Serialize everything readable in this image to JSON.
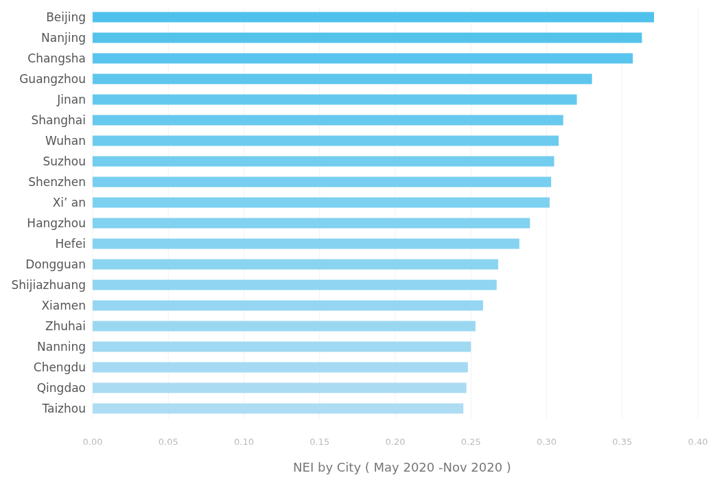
{
  "chart_data": {
    "type": "bar",
    "orientation": "horizontal",
    "xlabel": "NEI by City ( May 2020 -Nov 2020 )",
    "categories": [
      "Beijing",
      "Nanjing",
      "Changsha",
      "Guangzhou",
      "Jinan",
      "Shanghai",
      "Wuhan",
      "Suzhou",
      "Shenzhen",
      "Xi’ an",
      "Hangzhou",
      "Hefei",
      "Dongguan",
      "Shijiazhuang",
      "Xiamen",
      "Zhuhai",
      "Nanning",
      "Chengdu",
      "Qingdao",
      "Taizhou"
    ],
    "values": [
      0.371,
      0.363,
      0.357,
      0.33,
      0.32,
      0.311,
      0.308,
      0.305,
      0.303,
      0.302,
      0.289,
      0.282,
      0.268,
      0.267,
      0.258,
      0.253,
      0.25,
      0.248,
      0.247,
      0.245
    ],
    "colors": [
      "#4fc1ec",
      "#54c3ec",
      "#59c4ed",
      "#5ec6ed",
      "#63c8ee",
      "#68c9ee",
      "#6dcbef",
      "#72cdef",
      "#77cef0",
      "#7cd0f0",
      "#81d1f0",
      "#86d2f1",
      "#8bd4f1",
      "#90d5f1",
      "#95d6f2",
      "#9ad8f2",
      "#9fd9f2",
      "#a4daf3",
      "#a9dcf3",
      "#aeddf3"
    ],
    "xlim": [
      0,
      0.4
    ],
    "xticks": [
      {
        "value": 0,
        "label": "0.00"
      },
      {
        "value": 0.05,
        "label": "0.05"
      },
      {
        "value": 0.1,
        "label": "0.10"
      },
      {
        "value": 0.15,
        "label": "0.15"
      },
      {
        "value": 0.2,
        "label": "0.20"
      },
      {
        "value": 0.25,
        "label": "0.25"
      },
      {
        "value": 0.3,
        "label": "0.30"
      },
      {
        "value": 0.35,
        "label": "0.35"
      },
      {
        "value": 0.4,
        "label": "0.40"
      }
    ],
    "grid": "x"
  }
}
